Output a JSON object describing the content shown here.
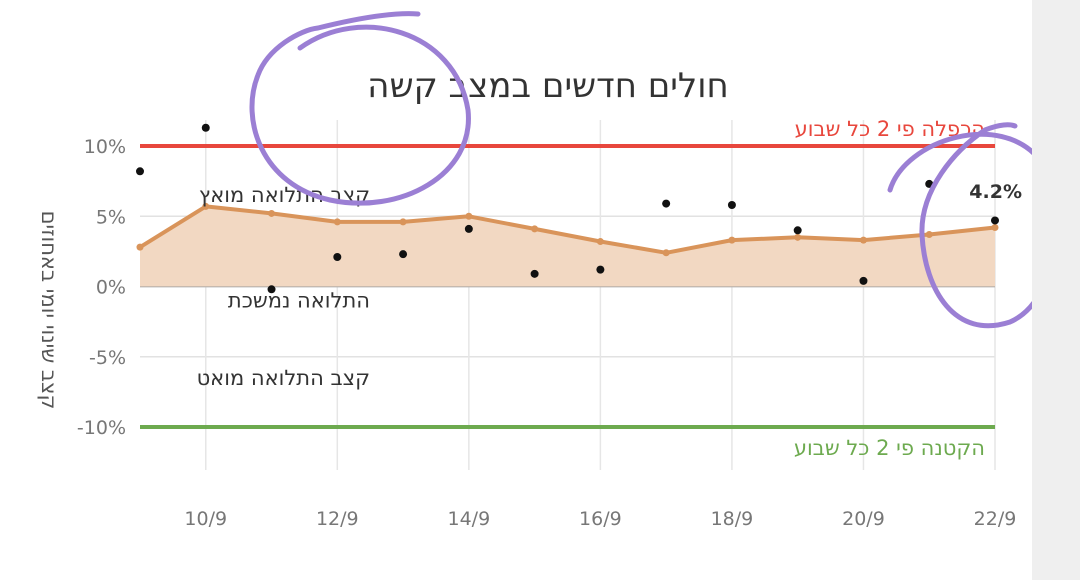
{
  "chart_data": {
    "type": "line",
    "title": "חולים חדשים במצב קשה",
    "ylabel": "קצב שינוי יומי באחוזים",
    "xlabel": "",
    "x_tick_labels": [
      "10/9",
      "12/9",
      "14/9",
      "16/9",
      "18/9",
      "20/9",
      "22/9"
    ],
    "y_tick_labels": [
      "10%",
      "5%",
      "0%",
      "-5%",
      "-10%"
    ],
    "y_ticks": [
      10,
      5,
      0,
      -5,
      -10
    ],
    "ylim": [
      -10,
      10
    ],
    "x_day_range": [
      9,
      22
    ],
    "grid": true,
    "series": [
      {
        "kind": "smoothed-line",
        "color": "#d9945a",
        "fill": "#f2d8c2",
        "days": [
          9,
          10,
          11,
          12,
          13,
          14,
          15,
          16,
          17,
          18,
          19,
          20,
          21,
          22
        ],
        "values": [
          2.8,
          5.7,
          5.2,
          4.6,
          4.6,
          5.0,
          4.1,
          3.2,
          2.4,
          3.3,
          3.5,
          3.3,
          3.7,
          4.2
        ]
      },
      {
        "kind": "daily-points",
        "color": "#111111",
        "days": [
          9,
          10,
          11,
          12,
          13,
          14,
          15,
          16,
          17,
          18,
          19,
          20,
          21,
          22
        ],
        "values": [
          8.2,
          11.3,
          -0.2,
          2.1,
          2.3,
          4.1,
          0.9,
          1.2,
          5.9,
          5.8,
          4.0,
          0.4,
          7.3,
          4.7
        ]
      }
    ],
    "reference_lines": [
      {
        "value": 10,
        "color": "#e8473d",
        "label": "הכפלה פי 2 כל שבוע"
      },
      {
        "value": -10,
        "color": "#6daa4f",
        "label": "הקטנה פי 2 כל שבוע"
      }
    ],
    "zone_labels": [
      {
        "value": 6.5,
        "label": "קצב התלואה מואץ"
      },
      {
        "value": -1.0,
        "label": "התלואה נמשכת"
      },
      {
        "value": -6.5,
        "label": "קצב התלואה מואט"
      }
    ],
    "last_value_label": "4.2%",
    "annotation_color": "#9b7fd4"
  }
}
